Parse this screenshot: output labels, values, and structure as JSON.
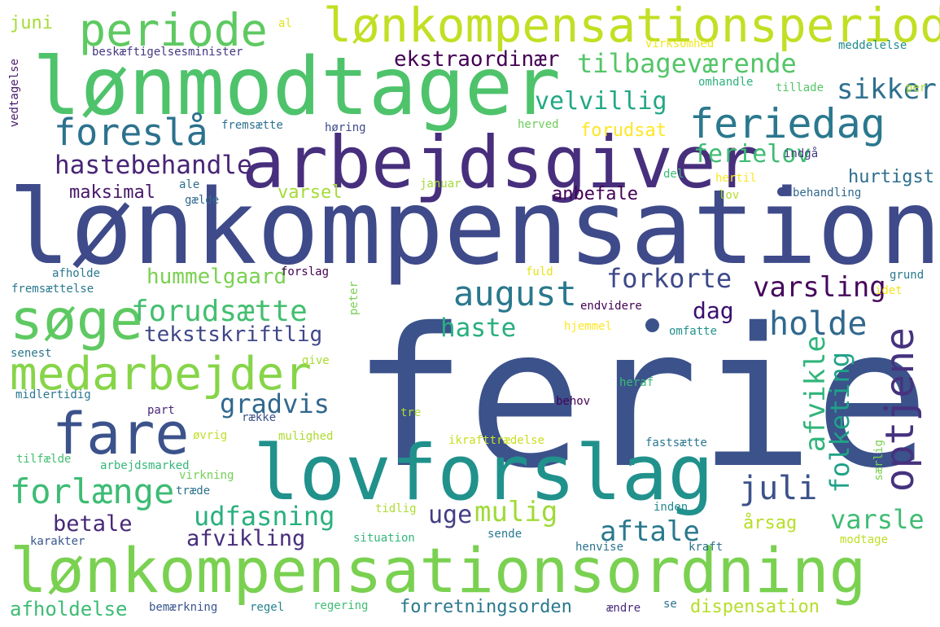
{
  "cloud": {
    "words": [
      {
        "text": "ferie",
        "color": "#3b528b"
      },
      {
        "text": "lønkompensation",
        "color": "#3e4a89"
      },
      {
        "text": "lønmodtager",
        "color": "#4ec36b"
      },
      {
        "text": "lønkompensationsordning",
        "color": "#7ad151"
      },
      {
        "text": "lovforslag",
        "color": "#21918c"
      },
      {
        "text": "arbejdsgiver",
        "color": "#472f7d"
      },
      {
        "text": "lønkompensationsperiode",
        "color": "#c2df23"
      },
      {
        "text": "periode",
        "color": "#5ec962"
      },
      {
        "text": "fare",
        "color": "#3b528b"
      },
      {
        "text": "søge",
        "color": "#5ec962"
      },
      {
        "text": "medarbejder",
        "color": "#86d549"
      },
      {
        "text": "feriedag",
        "color": "#2a788e"
      },
      {
        "text": "foreslå",
        "color": "#2c728e"
      },
      {
        "text": "tilbageværende",
        "color": "#54c568"
      },
      {
        "text": "august",
        "color": "#2a788e"
      },
      {
        "text": "forlænge",
        "color": "#3dbc74"
      },
      {
        "text": "optjene",
        "color": "#46327e"
      },
      {
        "text": "forudsætte",
        "color": "#44bf70"
      },
      {
        "text": "hastebehandle",
        "color": "#482576"
      },
      {
        "text": "ekstraordinær",
        "color": "#440154"
      },
      {
        "text": "udfasning",
        "color": "#2ab07f"
      },
      {
        "text": "juli",
        "color": "#3b528b"
      },
      {
        "text": "holde",
        "color": "#31688e"
      },
      {
        "text": "varsling",
        "color": "#46085c"
      },
      {
        "text": "forkorte",
        "color": "#3e4989"
      },
      {
        "text": "sikker",
        "color": "#2d708e"
      },
      {
        "text": "velvillig",
        "color": "#22a884"
      },
      {
        "text": "ferielov",
        "color": "#3fbc73"
      },
      {
        "text": "afvikle",
        "color": "#31b57b"
      },
      {
        "text": "folketing",
        "color": "#1fa287"
      },
      {
        "text": "varsle",
        "color": "#3fbc73"
      },
      {
        "text": "gradvis",
        "color": "#31688e"
      },
      {
        "text": "haste",
        "color": "#29af7f"
      },
      {
        "text": "aftale",
        "color": "#2a788e"
      },
      {
        "text": "mulig",
        "color": "#a0da39"
      },
      {
        "text": "uge",
        "color": "#433e85"
      },
      {
        "text": "betale",
        "color": "#482878"
      },
      {
        "text": "afvikling",
        "color": "#472d7b"
      },
      {
        "text": "dag",
        "color": "#3b0f70"
      },
      {
        "text": "tekstskriftlig",
        "color": "#3f4788"
      },
      {
        "text": "hummelgaard",
        "color": "#7ad151"
      },
      {
        "text": "anbefale",
        "color": "#440154"
      },
      {
        "text": "maksimal",
        "color": "#48186a"
      },
      {
        "text": "varsel",
        "color": "#a5db36"
      },
      {
        "text": "hurtigst",
        "color": "#2e6e8e"
      },
      {
        "text": "forudsat",
        "color": "#fde725"
      },
      {
        "text": "afholdelse",
        "color": "#3dbc74"
      },
      {
        "text": "forretningsorden",
        "color": "#2a788e"
      },
      {
        "text": "dispensation",
        "color": "#b5de2b"
      },
      {
        "text": "årsag",
        "color": "#b8de29"
      },
      {
        "text": "juni",
        "color": "#a5db36"
      },
      {
        "text": "beskæftigelsesminister",
        "color": "#453781"
      },
      {
        "text": "al",
        "color": "#dde318"
      },
      {
        "text": "virksomhed",
        "color": "#f1e51d"
      },
      {
        "text": "meddelelse",
        "color": "#228c8d"
      },
      {
        "text": "omhandle",
        "color": "#2db27d"
      },
      {
        "text": "tillade",
        "color": "#55c667"
      },
      {
        "text": "per",
        "color": "#aadc32"
      },
      {
        "text": "vedtagelse",
        "color": "#481b6d"
      },
      {
        "text": "fremsætte",
        "color": "#2d708e"
      },
      {
        "text": "høring",
        "color": "#3e4a89"
      },
      {
        "text": "herved",
        "color": "#6ccd5a"
      },
      {
        "text": "indgå",
        "color": "#443983"
      },
      {
        "text": "del",
        "color": "#3cbb75"
      },
      {
        "text": "hertil",
        "color": "#fde725"
      },
      {
        "text": "lov",
        "color": "#b2dd2d"
      },
      {
        "text": "behandling",
        "color": "#31688e"
      },
      {
        "text": "ale",
        "color": "#2f6c8e"
      },
      {
        "text": "gælde",
        "color": "#31688e"
      },
      {
        "text": "januar",
        "color": "#a2da37"
      },
      {
        "text": "afholde",
        "color": "#2a788e"
      },
      {
        "text": "forslag",
        "color": "#440154"
      },
      {
        "text": "fuld",
        "color": "#e5e419"
      },
      {
        "text": "grund",
        "color": "#2a788e"
      },
      {
        "text": "fremsættelse",
        "color": "#2a788e"
      },
      {
        "text": "peter",
        "color": "#7ad151"
      },
      {
        "text": "endvidere",
        "color": "#440154"
      },
      {
        "text": "idet",
        "color": "#f1e51d"
      },
      {
        "text": "hjemmel",
        "color": "#fde725"
      },
      {
        "text": "omfatte",
        "color": "#21918c"
      },
      {
        "text": "senest",
        "color": "#2a788e"
      },
      {
        "text": "give",
        "color": "#a8db34"
      },
      {
        "text": "heraf",
        "color": "#3cbb75"
      },
      {
        "text": "midlertidig",
        "color": "#2a788e"
      },
      {
        "text": "behov",
        "color": "#440154"
      },
      {
        "text": "part",
        "color": "#482878"
      },
      {
        "text": "række",
        "color": "#3b528b"
      },
      {
        "text": "tre",
        "color": "#addc30"
      },
      {
        "text": "øvrig",
        "color": "#c0df25"
      },
      {
        "text": "mulighed",
        "color": "#addc30"
      },
      {
        "text": "ikrafttrædelse",
        "color": "#c8e020"
      },
      {
        "text": "fastsætte",
        "color": "#2a788e"
      },
      {
        "text": "særlig",
        "color": "#7ad151"
      },
      {
        "text": "tilfælde",
        "color": "#44bf70"
      },
      {
        "text": "arbejdsmarked",
        "color": "#35b779"
      },
      {
        "text": "virkning",
        "color": "#73d056"
      },
      {
        "text": "træde",
        "color": "#2c728e"
      },
      {
        "text": "tidlig",
        "color": "#addc30"
      },
      {
        "text": "inden",
        "color": "#23888e"
      },
      {
        "text": "karakter",
        "color": "#39568c"
      },
      {
        "text": "situation",
        "color": "#33b67a"
      },
      {
        "text": "sende",
        "color": "#29798e"
      },
      {
        "text": "henvise",
        "color": "#2c738e"
      },
      {
        "text": "kraft",
        "color": "#2c728e"
      },
      {
        "text": "modtage",
        "color": "#bddf26"
      },
      {
        "text": "bemærkning",
        "color": "#39558c"
      },
      {
        "text": "regel",
        "color": "#26828e"
      },
      {
        "text": "regering",
        "color": "#3dbc74"
      },
      {
        "text": "ændre",
        "color": "#472a7a"
      },
      {
        "text": "se",
        "color": "#2c728e"
      }
    ]
  }
}
